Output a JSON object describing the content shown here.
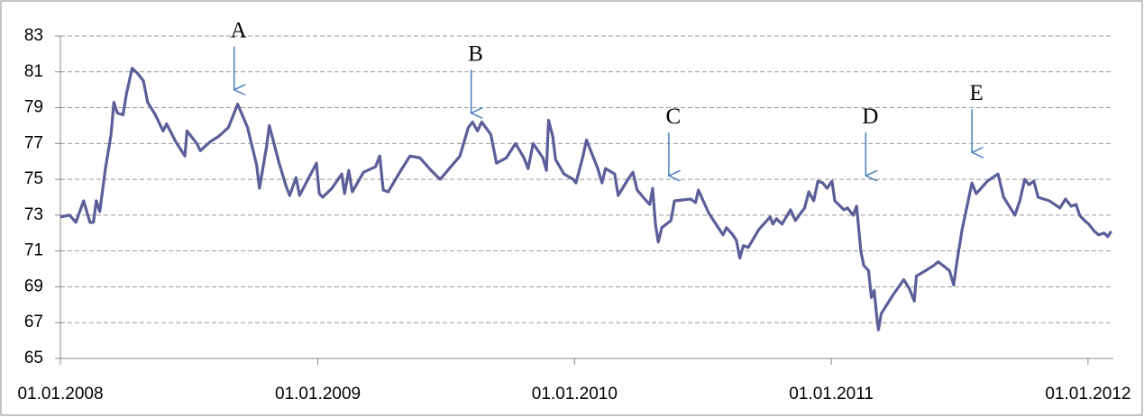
{
  "chart_data": {
    "type": "line",
    "x": [
      "2008-01-01",
      "2008-01-14",
      "2008-01-23",
      "2008-02-03",
      "2008-02-12",
      "2008-02-17",
      "2008-02-21",
      "2008-02-26",
      "2008-03-05",
      "2008-03-13",
      "2008-03-17",
      "2008-03-22",
      "2008-03-30",
      "2008-04-04",
      "2008-04-12",
      "2008-04-20",
      "2008-04-28",
      "2008-05-04",
      "2008-05-15",
      "2008-05-26",
      "2008-05-31",
      "2008-06-13",
      "2008-06-26",
      "2008-06-29",
      "2008-07-13",
      "2008-07-18",
      "2008-08-01",
      "2008-08-13",
      "2008-08-27",
      "2008-09-09",
      "2008-09-23",
      "2008-10-06",
      "2008-10-10",
      "2008-10-20",
      "2008-10-24",
      "2008-11-07",
      "2008-11-17",
      "2008-11-22",
      "2008-12-01",
      "2008-12-06",
      "2008-12-18",
      "2008-12-30",
      "2009-01-03",
      "2009-01-08",
      "2009-01-21",
      "2009-02-04",
      "2009-02-08",
      "2009-02-14",
      "2009-02-19",
      "2009-03-07",
      "2009-03-24",
      "2009-03-30",
      "2009-04-04",
      "2009-04-11",
      "2009-04-26",
      "2009-05-12",
      "2009-05-26",
      "2009-06-11",
      "2009-06-24",
      "2009-07-09",
      "2009-07-22",
      "2009-08-03",
      "2009-08-09",
      "2009-08-16",
      "2009-08-22",
      "2009-09-04",
      "2009-09-12",
      "2009-09-26",
      "2009-10-09",
      "2009-10-21",
      "2009-10-27",
      "2009-11-03",
      "2009-11-17",
      "2009-11-22",
      "2009-11-25",
      "2009-12-01",
      "2009-12-05",
      "2009-12-17",
      "2009-12-30",
      "2010-01-03",
      "2010-01-13",
      "2010-01-18",
      "2010-02-03",
      "2010-02-09",
      "2010-02-14",
      "2010-02-27",
      "2010-03-04",
      "2010-03-18",
      "2010-03-25",
      "2010-03-31",
      "2010-04-13",
      "2010-04-18",
      "2010-04-22",
      "2010-04-26",
      "2010-04-30",
      "2010-05-05",
      "2010-05-18",
      "2010-05-23",
      "2010-06-15",
      "2010-06-22",
      "2010-06-26",
      "2010-07-11",
      "2010-07-26",
      "2010-07-31",
      "2010-08-05",
      "2010-08-14",
      "2010-08-19",
      "2010-08-24",
      "2010-08-29",
      "2010-09-05",
      "2010-09-20",
      "2010-10-06",
      "2010-10-10",
      "2010-10-15",
      "2010-10-23",
      "2010-11-04",
      "2010-11-11",
      "2010-11-24",
      "2010-11-30",
      "2010-12-07",
      "2010-12-13",
      "2010-12-20",
      "2010-12-26",
      "2011-01-02",
      "2011-01-06",
      "2011-01-19",
      "2011-01-24",
      "2011-02-01",
      "2011-02-06",
      "2011-02-12",
      "2011-02-16",
      "2011-02-23",
      "2011-02-27",
      "2011-03-03",
      "2011-03-07",
      "2011-03-09",
      "2011-03-13",
      "2011-03-29",
      "2011-04-14",
      "2011-04-22",
      "2011-04-29",
      "2011-05-02",
      "2011-05-15",
      "2011-05-27",
      "2011-06-02",
      "2011-06-18",
      "2011-06-24",
      "2011-06-29",
      "2011-07-06",
      "2011-07-20",
      "2011-07-26",
      "2011-08-11",
      "2011-08-26",
      "2011-09-03",
      "2011-09-19",
      "2011-09-26",
      "2011-10-03",
      "2011-10-09",
      "2011-10-16",
      "2011-10-22",
      "2011-11-07",
      "2011-11-22",
      "2011-11-30",
      "2011-12-08",
      "2011-12-15",
      "2011-12-20",
      "2011-12-27",
      "2012-01-02",
      "2012-01-10",
      "2012-01-16",
      "2012-01-24",
      "2012-01-29",
      "2012-02-03"
    ],
    "series": [
      {
        "color": "#5b5e98",
        "values": [
          72.9,
          73.0,
          72.6,
          73.8,
          72.6,
          72.6,
          73.8,
          73.2,
          75.6,
          77.5,
          79.3,
          78.7,
          78.6,
          79.8,
          81.2,
          80.9,
          80.5,
          79.3,
          78.6,
          77.7,
          78.1,
          77.1,
          76.3,
          77.7,
          77.0,
          76.6,
          77.1,
          77.4,
          77.9,
          79.2,
          77.9,
          75.8,
          74.5,
          76.8,
          78.0,
          75.9,
          74.6,
          74.1,
          75.1,
          74.1,
          75.0,
          75.9,
          74.2,
          74.0,
          74.5,
          75.3,
          74.2,
          75.5,
          74.3,
          75.4,
          75.7,
          76.3,
          74.4,
          74.3,
          75.3,
          76.3,
          76.2,
          75.5,
          75.0,
          75.7,
          76.3,
          77.9,
          78.2,
          77.7,
          78.2,
          77.5,
          75.9,
          76.2,
          77.0,
          76.2,
          75.6,
          77.0,
          76.2,
          75.5,
          78.3,
          77.4,
          76.1,
          75.3,
          75.0,
          74.8,
          76.3,
          77.2,
          75.6,
          74.8,
          75.6,
          75.3,
          74.1,
          75.0,
          75.4,
          74.4,
          73.8,
          73.6,
          74.5,
          72.5,
          71.5,
          72.3,
          72.7,
          73.8,
          73.9,
          73.7,
          74.4,
          73.1,
          72.2,
          71.9,
          72.3,
          71.9,
          71.6,
          70.6,
          71.3,
          71.2,
          72.2,
          72.9,
          72.5,
          72.8,
          72.5,
          73.3,
          72.7,
          73.4,
          74.3,
          73.8,
          74.9,
          74.8,
          74.5,
          74.9,
          73.8,
          73.3,
          73.4,
          73.0,
          73.5,
          71.0,
          70.2,
          69.9,
          68.4,
          68.8,
          67.2,
          66.6,
          67.5,
          68.5,
          69.4,
          68.9,
          68.2,
          69.6,
          69.9,
          70.2,
          70.4,
          69.9,
          69.1,
          70.5,
          72.2,
          74.8,
          74.2,
          74.9,
          75.3,
          74.0,
          73.0,
          73.8,
          75.0,
          74.7,
          74.9,
          74.0,
          73.8,
          73.4,
          73.9,
          73.5,
          73.6,
          73.0,
          72.7,
          72.5,
          72.1,
          71.9,
          72.0,
          71.8,
          72.1
        ]
      }
    ],
    "xlim": [
      "2008-01-01",
      "2012-02-06"
    ],
    "xticks": [
      {
        "value": "2008-01-01",
        "label": "01.01.2008"
      },
      {
        "value": "2009-01-01",
        "label": "01.01.2009"
      },
      {
        "value": "2010-01-01",
        "label": "01.01.2010"
      },
      {
        "value": "2011-01-01",
        "label": "01.01.2011"
      },
      {
        "value": "2012-01-01",
        "label": "01.01.2012"
      }
    ],
    "ylim": [
      65,
      83
    ],
    "yticks": [
      65,
      67,
      69,
      71,
      73,
      75,
      77,
      79,
      81,
      83
    ],
    "grid": true,
    "annotations": [
      {
        "text": "A",
        "x": "2008-09-04",
        "y": 80.0
      },
      {
        "text": "B",
        "x": "2009-08-07",
        "y": 78.7
      },
      {
        "text": "C",
        "x": "2010-05-15",
        "y": 75.2
      },
      {
        "text": "D",
        "x": "2011-02-19",
        "y": 75.2
      },
      {
        "text": "E",
        "x": "2011-07-20",
        "y": 76.5
      }
    ]
  }
}
